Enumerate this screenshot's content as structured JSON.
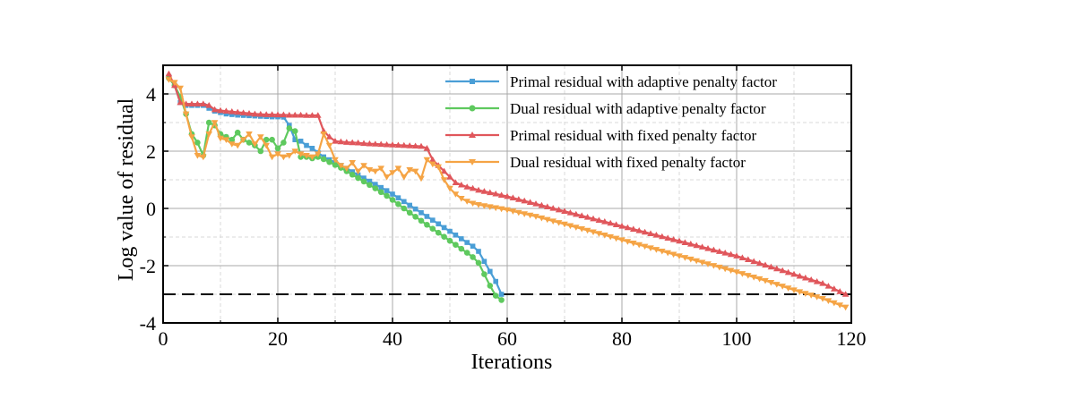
{
  "chart_data": {
    "type": "line",
    "title": "",
    "xlabel": "Iterations",
    "ylabel": "Log value of residual",
    "xlim": [
      0,
      120
    ],
    "ylim": [
      -4,
      5
    ],
    "xticks": [
      0,
      20,
      40,
      60,
      80,
      100,
      120
    ],
    "yticks": [
      -4,
      -2,
      0,
      2,
      4
    ],
    "grid": true,
    "legend_position": "top-right",
    "threshold": {
      "value": -3,
      "style": "dashed",
      "color": "#000000"
    },
    "series": [
      {
        "name": "Primal residual with adaptive penalty factor",
        "color": "#4a9ed6",
        "marker": "square",
        "x": [
          1,
          2,
          3,
          4,
          5,
          6,
          7,
          8,
          9,
          10,
          11,
          12,
          13,
          14,
          15,
          16,
          17,
          18,
          19,
          20,
          21,
          22,
          23,
          24,
          25,
          26,
          27,
          28,
          29,
          30,
          31,
          32,
          33,
          34,
          35,
          36,
          37,
          38,
          39,
          40,
          41,
          42,
          43,
          44,
          45,
          46,
          47,
          48,
          49,
          50,
          51,
          52,
          53,
          54,
          55,
          56,
          57,
          58,
          59
        ],
        "values": [
          4.6,
          4.3,
          3.7,
          3.6,
          3.6,
          3.6,
          3.6,
          3.5,
          3.4,
          3.35,
          3.3,
          3.28,
          3.26,
          3.25,
          3.24,
          3.23,
          3.22,
          3.21,
          3.2,
          3.2,
          3.19,
          2.9,
          2.4,
          2.35,
          2.2,
          2.1,
          1.95,
          1.8,
          1.7,
          1.6,
          1.5,
          1.4,
          1.28,
          1.17,
          1.06,
          0.95,
          0.84,
          0.73,
          0.62,
          0.5,
          0.37,
          0.24,
          0.11,
          -0.02,
          -0.15,
          -0.28,
          -0.41,
          -0.54,
          -0.67,
          -0.8,
          -0.93,
          -1.06,
          -1.19,
          -1.32,
          -1.5,
          -1.85,
          -2.2,
          -2.55,
          -3.0
        ]
      },
      {
        "name": "Dual residual with adaptive penalty factor",
        "color": "#5ec95e",
        "marker": "circle",
        "x": [
          1,
          2,
          3,
          4,
          5,
          6,
          7,
          8,
          9,
          10,
          11,
          12,
          13,
          14,
          15,
          16,
          17,
          18,
          19,
          20,
          21,
          22,
          23,
          24,
          25,
          26,
          27,
          28,
          29,
          30,
          31,
          32,
          33,
          34,
          35,
          36,
          37,
          38,
          39,
          40,
          41,
          42,
          43,
          44,
          45,
          46,
          47,
          48,
          49,
          50,
          51,
          52,
          53,
          54,
          55,
          56,
          57,
          58,
          59
        ],
        "values": [
          4.55,
          4.3,
          3.9,
          3.3,
          2.6,
          2.3,
          1.85,
          3.0,
          2.9,
          2.6,
          2.5,
          2.4,
          2.65,
          2.4,
          2.3,
          2.2,
          2.0,
          2.4,
          2.4,
          2.1,
          2.3,
          2.8,
          2.7,
          1.8,
          1.8,
          1.75,
          1.8,
          1.72,
          1.62,
          1.52,
          1.42,
          1.3,
          1.18,
          1.06,
          0.94,
          0.82,
          0.7,
          0.57,
          0.44,
          0.3,
          0.15,
          0.0,
          -0.15,
          -0.29,
          -0.43,
          -0.57,
          -0.71,
          -0.85,
          -0.99,
          -1.13,
          -1.27,
          -1.41,
          -1.55,
          -1.7,
          -1.9,
          -2.3,
          -2.7,
          -3.05,
          -3.2
        ]
      },
      {
        "name": "Primal residual with fixed penalty factor",
        "color": "#e0565b",
        "marker": "triangle-up",
        "x": [
          1,
          2,
          3,
          4,
          5,
          6,
          7,
          8,
          9,
          10,
          11,
          12,
          13,
          14,
          15,
          16,
          17,
          18,
          19,
          20,
          21,
          22,
          23,
          24,
          25,
          26,
          27,
          28,
          29,
          30,
          31,
          32,
          33,
          34,
          35,
          36,
          37,
          38,
          39,
          40,
          41,
          42,
          43,
          44,
          45,
          46,
          47,
          48,
          49,
          50,
          51,
          52,
          53,
          54,
          55,
          60,
          65,
          70,
          75,
          80,
          85,
          90,
          95,
          100,
          105,
          110,
          115,
          119
        ],
        "values": [
          4.7,
          4.3,
          3.7,
          3.65,
          3.65,
          3.65,
          3.65,
          3.6,
          3.45,
          3.42,
          3.4,
          3.38,
          3.36,
          3.34,
          3.32,
          3.3,
          3.29,
          3.28,
          3.28,
          3.27,
          3.27,
          3.26,
          3.26,
          3.26,
          3.25,
          3.25,
          3.25,
          2.7,
          2.5,
          2.35,
          2.33,
          2.31,
          2.3,
          2.29,
          2.27,
          2.26,
          2.25,
          2.24,
          2.23,
          2.22,
          2.21,
          2.2,
          2.19,
          2.18,
          2.17,
          2.1,
          1.7,
          1.5,
          1.3,
          1.1,
          0.9,
          0.82,
          0.75,
          0.7,
          0.64,
          0.42,
          0.16,
          -0.1,
          -0.36,
          -0.62,
          -0.88,
          -1.14,
          -1.4,
          -1.66,
          -1.98,
          -2.3,
          -2.62,
          -3.0
        ]
      },
      {
        "name": "Dual residual with fixed penalty factor",
        "color": "#f5a445",
        "marker": "triangle-down",
        "x": [
          1,
          2,
          3,
          4,
          5,
          6,
          7,
          8,
          9,
          10,
          11,
          12,
          13,
          14,
          15,
          16,
          17,
          18,
          19,
          20,
          21,
          22,
          23,
          24,
          25,
          26,
          27,
          28,
          29,
          30,
          31,
          32,
          33,
          34,
          35,
          36,
          37,
          38,
          39,
          40,
          41,
          42,
          43,
          44,
          45,
          46,
          47,
          48,
          49,
          50,
          51,
          52,
          53,
          54,
          55,
          60,
          65,
          70,
          75,
          80,
          85,
          90,
          95,
          100,
          105,
          110,
          115,
          119
        ],
        "values": [
          4.5,
          4.4,
          4.2,
          3.3,
          2.5,
          1.85,
          1.8,
          2.6,
          3.0,
          2.45,
          2.4,
          2.25,
          2.2,
          2.4,
          2.6,
          2.25,
          2.5,
          2.2,
          1.8,
          1.9,
          1.8,
          1.85,
          2.0,
          1.9,
          1.85,
          1.8,
          1.9,
          2.6,
          2.2,
          1.7,
          1.5,
          1.4,
          1.6,
          1.3,
          1.5,
          1.35,
          1.3,
          1.4,
          1.1,
          1.25,
          1.4,
          1.1,
          1.35,
          1.3,
          1.05,
          1.7,
          1.55,
          1.45,
          1.0,
          0.7,
          0.5,
          0.35,
          0.25,
          0.18,
          0.13,
          -0.05,
          -0.28,
          -0.55,
          -0.82,
          -1.1,
          -1.38,
          -1.66,
          -1.94,
          -2.22,
          -2.52,
          -2.85,
          -3.15,
          -3.45
        ]
      }
    ]
  }
}
